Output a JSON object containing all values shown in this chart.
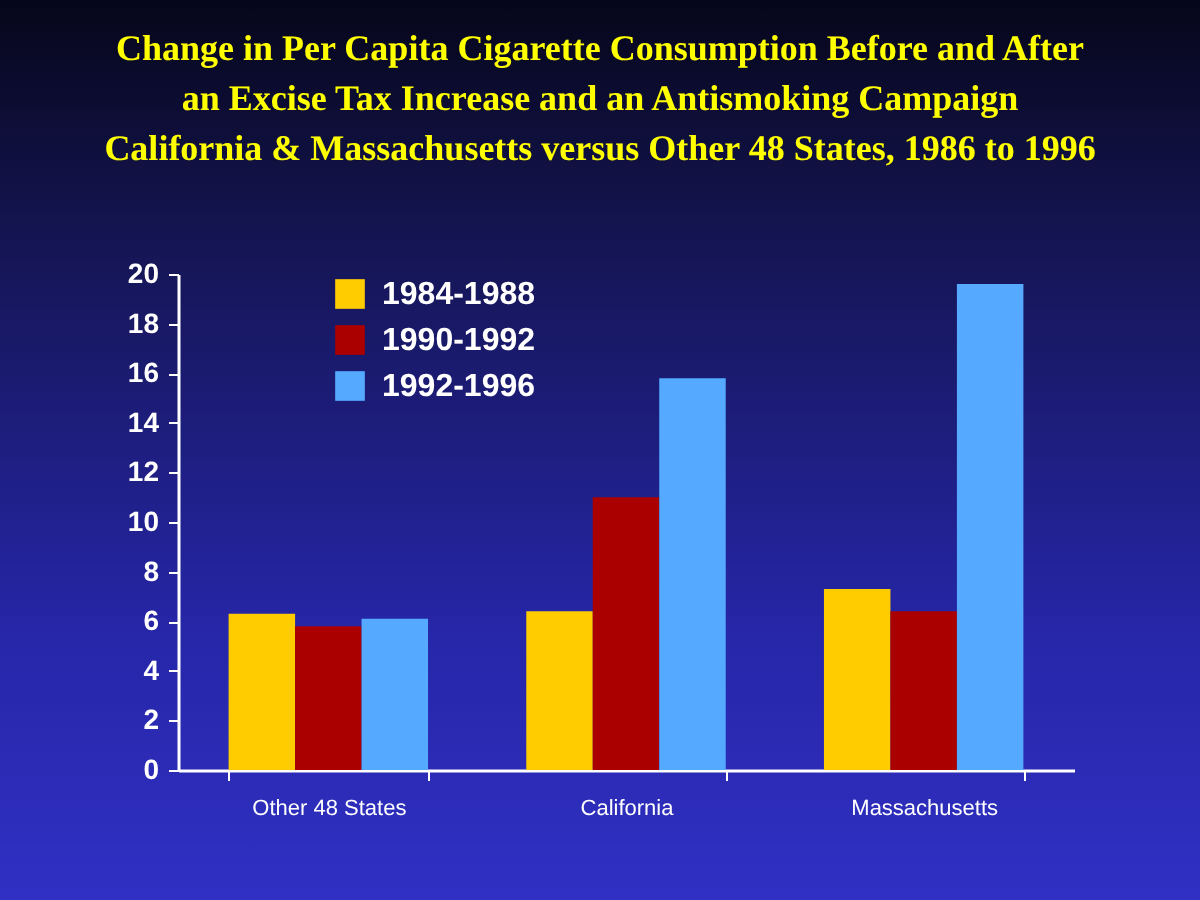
{
  "chart_data": {
    "type": "bar",
    "title": "Change in Per Capita Cigarette Consumption Before and After\nan Excise Tax Increase and an Antismoking Campaign\nCalifornia & Massachusetts versus Other 48 States, 1986 to 1996",
    "categories": [
      "Other 48 States",
      "California",
      "Massachusetts"
    ],
    "series": [
      {
        "name": "1984-1988",
        "color": "#ffcc00",
        "values": [
          6.3,
          6.4,
          7.3
        ]
      },
      {
        "name": "1990-1992",
        "color": "#aa0000",
        "values": [
          5.8,
          11.0,
          6.4
        ]
      },
      {
        "name": "1992-1996",
        "color": "#55aaff",
        "values": [
          6.1,
          15.8,
          19.6
        ]
      }
    ],
    "ylim": [
      0,
      20
    ],
    "yticks": [
      0,
      2,
      4,
      6,
      8,
      10,
      12,
      14,
      16,
      18,
      20
    ],
    "legend": "top left"
  }
}
